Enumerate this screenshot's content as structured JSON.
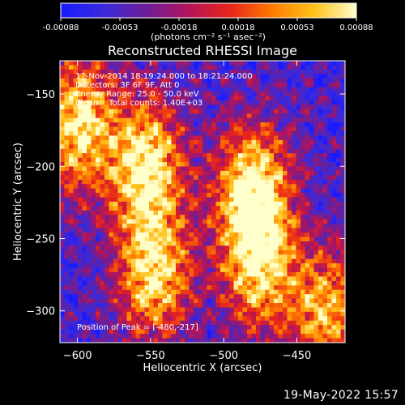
{
  "colorbar": {
    "tick_labels": [
      "-0.00088",
      "-0.00053",
      "-0.00018",
      "0.00018",
      "0.00053",
      "0.00088"
    ],
    "units": "(photons cm⁻² s⁻¹ asec⁻²)",
    "colors": [
      "#1a1aff",
      "#3a2adb",
      "#6a1f9a",
      "#b0145e",
      "#e8251a",
      "#ff7a00",
      "#ffc21a",
      "#ffffcc"
    ]
  },
  "chart_data": {
    "type": "heatmap",
    "title": "Reconstructed RHESSI Image",
    "xlabel": "Heliocentric X (arcsec)",
    "ylabel": "Heliocentric Y (arcsec)",
    "xlim": [
      -612,
      -417
    ],
    "ylim": [
      -322,
      -127
    ],
    "x_ticks": [
      -600,
      -550,
      -500,
      -450
    ],
    "y_ticks": [
      -150,
      -200,
      -250,
      -300
    ],
    "annotations": {
      "time": "17-Nov-2014 18:19:24.000 to 18:21:24.000",
      "detectors": "Detectors: 3F 6F 9F, Att 0",
      "energy": "Energy Range: 25.0 - 50.0 keV",
      "clean": "Clean    Total counts: 1.40E+03",
      "peak": "Position of Peak = [-480,-217]"
    },
    "sources": [
      {
        "x": -600,
        "y": -170,
        "strength": 0.95
      },
      {
        "x": -553,
        "y": -200,
        "strength": 1.0
      },
      {
        "x": -548,
        "y": -275,
        "strength": 0.9
      },
      {
        "x": -480,
        "y": -217,
        "strength": 1.0
      },
      {
        "x": -476,
        "y": -270,
        "strength": 0.8
      },
      {
        "x": -430,
        "y": -300,
        "strength": 0.75
      }
    ]
  },
  "footer": {
    "date": "19-May-2022 15:57"
  }
}
